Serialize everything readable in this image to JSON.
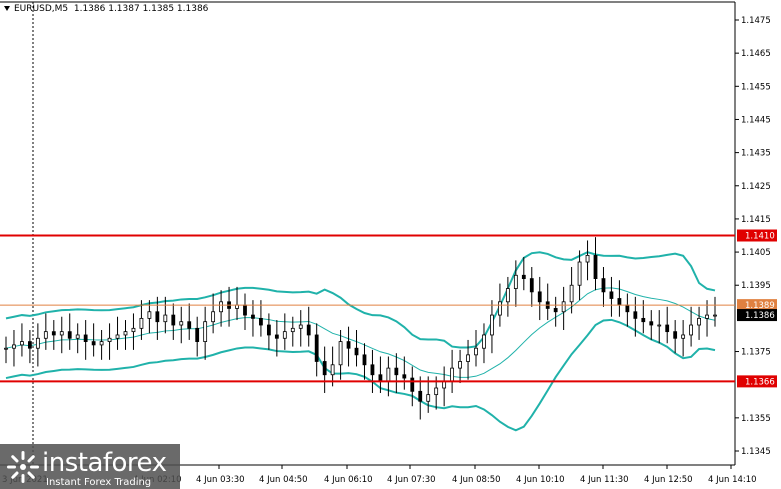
{
  "title": {
    "symbol": "EURUSD,M5",
    "ohlc": "1.1386 1.1387 1.1385 1.1386"
  },
  "watermark": {
    "brand": "instaforex",
    "tagline": "Instant Forex Trading"
  },
  "colors": {
    "candle": "#000000",
    "bollinger": "#20b2aa",
    "level_red": "#e00000",
    "level_orange": "#e08040",
    "current_price": "#000000"
  },
  "chart_data": {
    "type": "candlestick",
    "ylim": [
      1.134,
      1.148
    ],
    "y_ticks": [
      "1.1475",
      "1.1465",
      "1.1455",
      "1.1445",
      "1.1435",
      "1.1425",
      "1.1415",
      "1.1405",
      "1.1395",
      "1.1375",
      "1.1355",
      "1.1345"
    ],
    "x_ticks": [
      "3 Jun 2021",
      "4 Jun 02:10",
      "4 Jun 03:30",
      "4 Jun 04:50",
      "4 Jun 06:10",
      "4 Jun 07:30",
      "4 Jun 08:50",
      "4 Jun 10:10",
      "4 Jun 11:30",
      "4 Jun 12:50",
      "4 Jun 14:10"
    ],
    "levels": [
      {
        "label": "1.1410",
        "value": 1.141,
        "style": "red"
      },
      {
        "label": "1.1389",
        "value": 1.1389,
        "style": "orange"
      },
      {
        "label": "1.1386",
        "value": 1.1386,
        "style": "current"
      },
      {
        "label": "1.1366",
        "value": 1.1366,
        "style": "red"
      }
    ],
    "close_path": [
      1.1376,
      1.1377,
      1.1378,
      1.1376,
      1.1379,
      1.1381,
      1.138,
      1.1381,
      1.1379,
      1.138,
      1.1378,
      1.1377,
      1.1378,
      1.1379,
      1.138,
      1.1381,
      1.1382,
      1.1385,
      1.1387,
      1.1384,
      1.1386,
      1.1383,
      1.1384,
      1.1382,
      1.1378,
      1.1384,
      1.1387,
      1.139,
      1.1388,
      1.1389,
      1.1386,
      1.1385,
      1.1383,
      1.138,
      1.1379,
      1.1381,
      1.1382,
      1.1383,
      1.138,
      1.1372,
      1.1368,
      1.1371,
      1.1378,
      1.1376,
      1.1374,
      1.1371,
      1.1368,
      1.1366,
      1.137,
      1.1368,
      1.1367,
      1.1363,
      1.136,
      1.1362,
      1.1364,
      1.1366,
      1.137,
      1.1372,
      1.1374,
      1.1376,
      1.138,
      1.1386,
      1.139,
      1.1394,
      1.1398,
      1.1397,
      1.1393,
      1.139,
      1.1388,
      1.1387,
      1.139,
      1.1395,
      1.1402,
      1.1404,
      1.1397,
      1.1393,
      1.1391,
      1.1389,
      1.1387,
      1.1385,
      1.1384,
      1.1383,
      1.1383,
      1.1381,
      1.1379,
      1.138,
      1.1383,
      1.1385,
      1.1386,
      1.1386
    ]
  }
}
